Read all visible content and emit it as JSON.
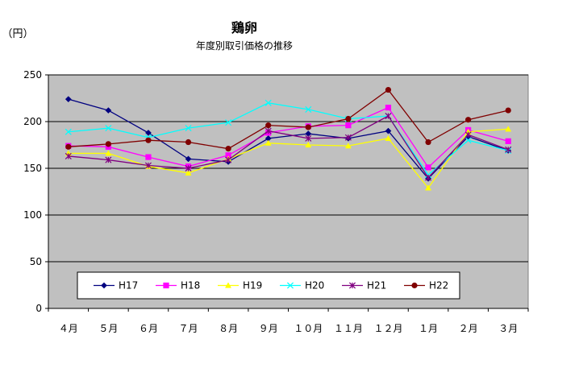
{
  "chart_data": {
    "type": "line",
    "title": "鶏卵",
    "subtitle": "年度別取引価格の推移",
    "ylabel": "（円）",
    "xlabel": "",
    "categories": [
      "４月",
      "５月",
      "６月",
      "７月",
      "８月",
      "９月",
      "１０月",
      "１１月",
      "１２月",
      "１月",
      "２月",
      "３月"
    ],
    "ylim": [
      0,
      250
    ],
    "yticks": [
      0,
      50,
      100,
      150,
      200,
      250
    ],
    "grid": true,
    "legend_position": "bottom-inside",
    "plot_background": "#c0c0c0",
    "series": [
      {
        "name": "H17",
        "color": "#000080",
        "marker": "diamond",
        "values": [
          224,
          212,
          188,
          160,
          157,
          182,
          187,
          182,
          190,
          139,
          184,
          169
        ]
      },
      {
        "name": "H18",
        "color": "#ff00ff",
        "marker": "square",
        "values": [
          174,
          173,
          162,
          152,
          164,
          188,
          195,
          196,
          215,
          151,
          191,
          179
        ]
      },
      {
        "name": "H19",
        "color": "#ffff00",
        "marker": "triangle",
        "values": [
          166,
          166,
          152,
          145,
          160,
          177,
          175,
          174,
          182,
          129,
          189,
          192
        ]
      },
      {
        "name": "H20",
        "color": "#00ffff",
        "marker": "x",
        "values": [
          189,
          193,
          183,
          193,
          199,
          220,
          213,
          203,
          206,
          143,
          180,
          169
        ]
      },
      {
        "name": "H21",
        "color": "#800080",
        "marker": "asterisk",
        "values": [
          163,
          159,
          153,
          150,
          159,
          190,
          182,
          183,
          206,
          140,
          186,
          170
        ]
      },
      {
        "name": "H22",
        "color": "#800000",
        "marker": "circle",
        "values": [
          173,
          176,
          180,
          178,
          171,
          196,
          194,
          203,
          234,
          178,
          202,
          212
        ]
      }
    ]
  }
}
